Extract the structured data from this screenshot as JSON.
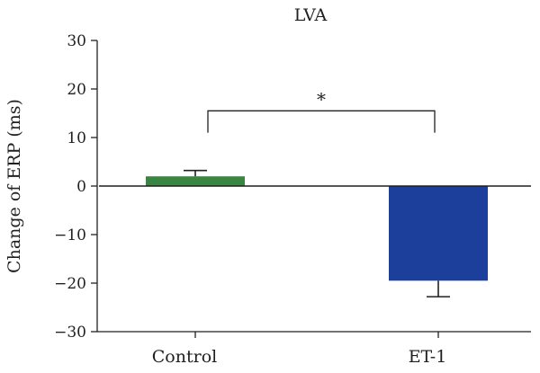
{
  "chart_data": {
    "type": "bar",
    "title": "LVA",
    "xlabel": "",
    "ylabel": "Change of ERP (ms)",
    "categories": [
      "Control",
      "ET-1"
    ],
    "values": [
      2.0,
      -19.5
    ],
    "errors": [
      1.2,
      3.3
    ],
    "colors": [
      "#3b8543",
      "#1c3f9c"
    ],
    "ylim": [
      -30,
      30
    ],
    "yticks": [
      30,
      20,
      10,
      0,
      -10,
      -20,
      -30
    ],
    "ytick_labels": [
      "30",
      "20",
      "10",
      "0",
      "−10",
      "−20",
      "−30"
    ],
    "significance": {
      "label": "*",
      "between": [
        "Control",
        "ET-1"
      ]
    },
    "grid": false,
    "legend": "none"
  }
}
